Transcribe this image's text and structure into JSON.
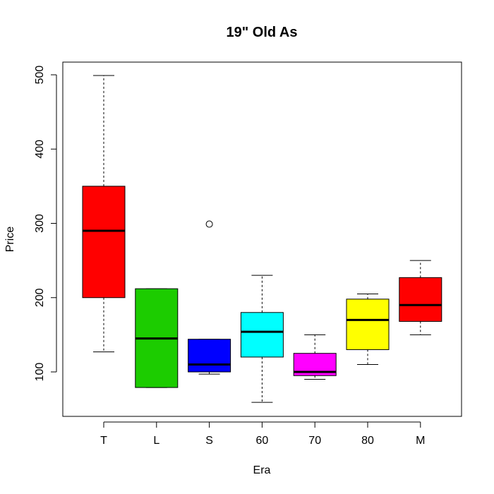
{
  "chart_data": {
    "type": "box",
    "title": "19\" Old As",
    "xlabel": "Era",
    "ylabel": "Price",
    "categories": [
      "T",
      "L",
      "S",
      "60",
      "70",
      "80",
      "M"
    ],
    "colors": [
      "#ff0000",
      "#1ccc00",
      "#0000ff",
      "#00ffff",
      "#ff00ff",
      "#ffff00",
      "#ff0000"
    ],
    "yticks": [
      100,
      200,
      300,
      400,
      500
    ],
    "ylim": [
      40,
      518
    ],
    "boxes": [
      {
        "category": "T",
        "lower_whisker": 127,
        "q1": 200,
        "median": 290,
        "q3": 350,
        "upper_whisker": 499,
        "outliers": []
      },
      {
        "category": "L",
        "lower_whisker": 79,
        "q1": 79,
        "median": 145,
        "q3": 212,
        "upper_whisker": 212,
        "outliers": []
      },
      {
        "category": "S",
        "lower_whisker": 97,
        "q1": 100,
        "median": 110,
        "q3": 144,
        "upper_whisker": 144,
        "outliers": [
          299
        ]
      },
      {
        "category": "60",
        "lower_whisker": 59,
        "q1": 120,
        "median": 154,
        "q3": 180,
        "upper_whisker": 230,
        "outliers": []
      },
      {
        "category": "70",
        "lower_whisker": 90,
        "q1": 95,
        "median": 100,
        "q3": 125,
        "upper_whisker": 150,
        "outliers": []
      },
      {
        "category": "80",
        "lower_whisker": 110,
        "q1": 130,
        "median": 170,
        "q3": 198,
        "upper_whisker": 205,
        "outliers": []
      },
      {
        "category": "M",
        "lower_whisker": 150,
        "q1": 168,
        "median": 190,
        "q3": 227,
        "upper_whisker": 250,
        "outliers": []
      }
    ]
  }
}
